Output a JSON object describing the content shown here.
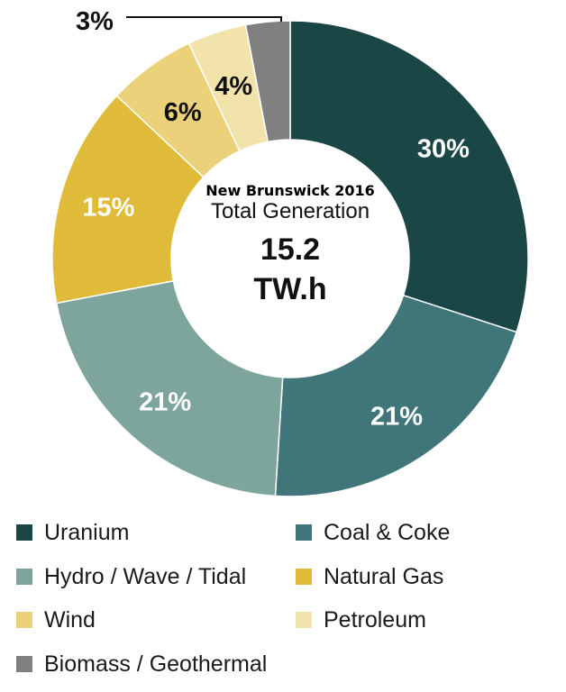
{
  "chart_data": {
    "type": "pie",
    "donut": true,
    "center": {
      "title": "New Brunswick 2016",
      "subtitle": "Total Generation",
      "value": "15.2",
      "unit": "TW.h"
    },
    "slices": [
      {
        "label": "Uranium",
        "value": 30,
        "display": "30%",
        "color": "#1b4646",
        "label_color": "#ffffff"
      },
      {
        "label": "Coal & Coke",
        "value": 21,
        "display": "21%",
        "color": "#40757a",
        "label_color": "#ffffff"
      },
      {
        "label": "Hydro / Wave / Tidal",
        "value": 21,
        "display": "21%",
        "color": "#7da59c",
        "label_color": "#ffffff"
      },
      {
        "label": "Natural Gas",
        "value": 15,
        "display": "15%",
        "color": "#e0bb3a",
        "label_color": "#ffffff"
      },
      {
        "label": "Wind",
        "value": 6,
        "display": "6%",
        "color": "#ead17a",
        "label_color": "#111111"
      },
      {
        "label": "Petroleum",
        "value": 4,
        "display": "4%",
        "color": "#f1e3aa",
        "label_color": "#111111"
      },
      {
        "label": "Biomass / Geothermal",
        "value": 3,
        "display": "3%",
        "color": "#808080",
        "label_color": "#111111"
      }
    ],
    "legend_position": "bottom"
  }
}
